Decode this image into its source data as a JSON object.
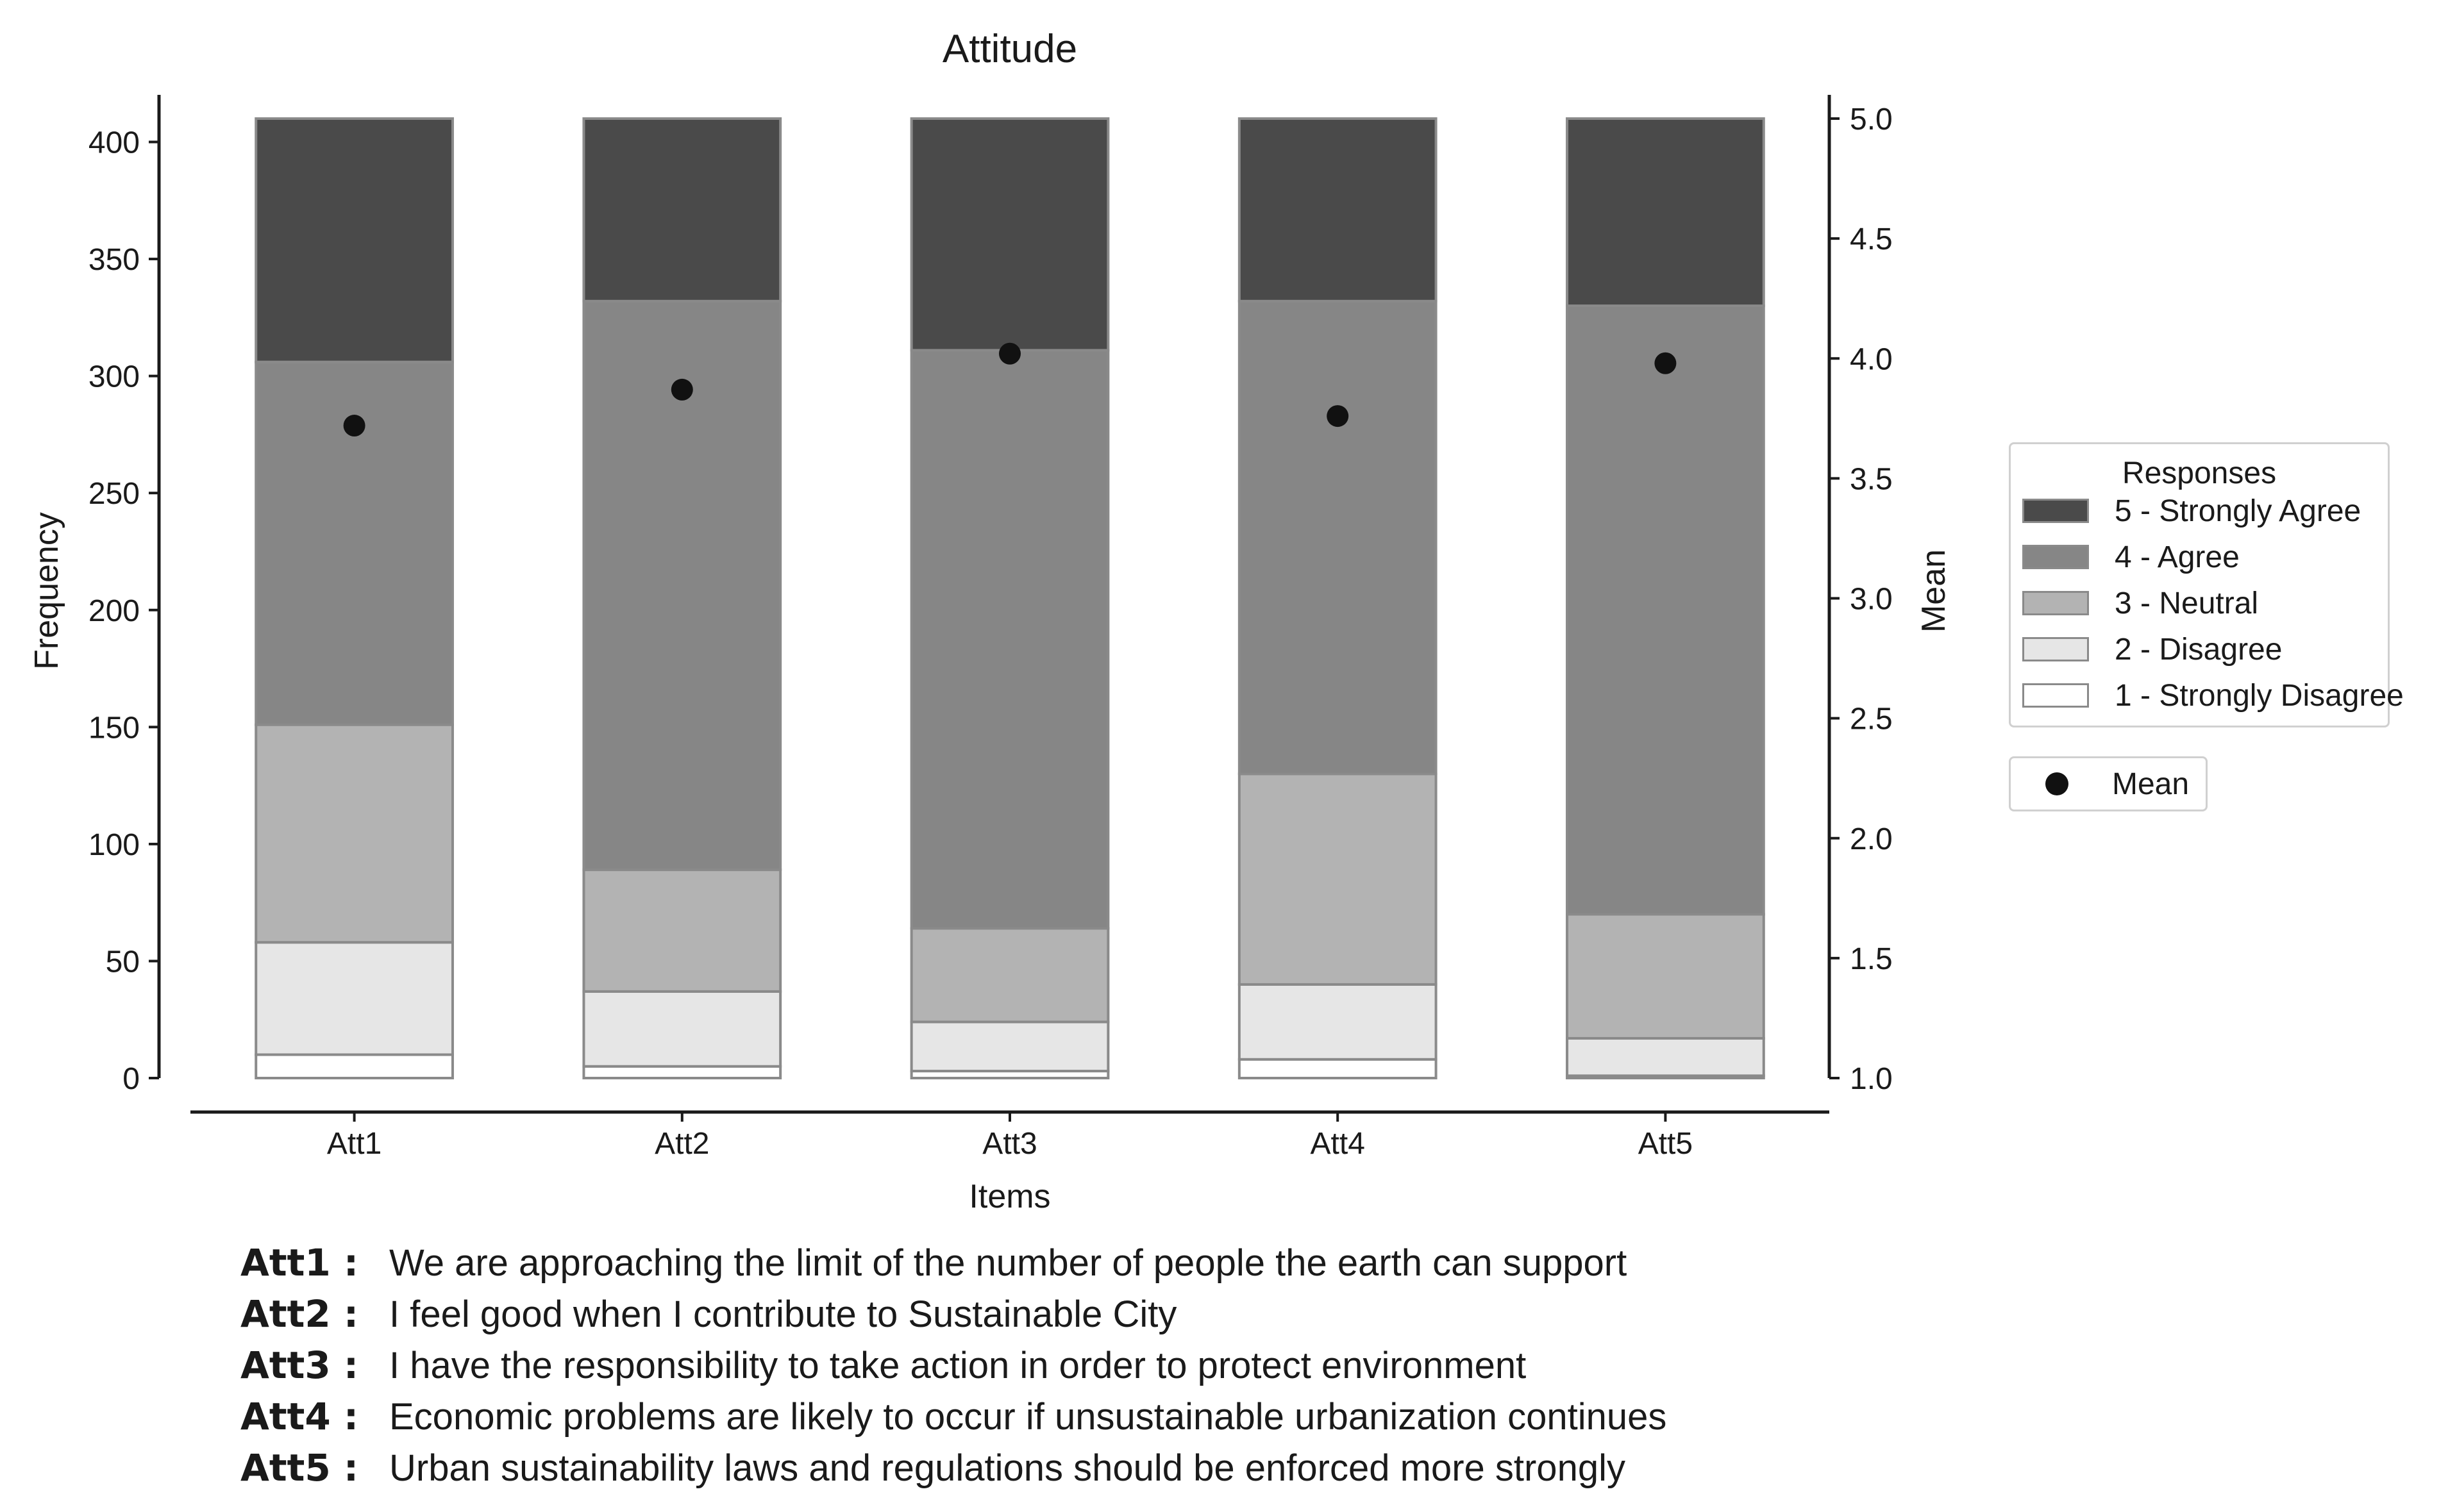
{
  "chart_data": {
    "type": "bar",
    "stacked": true,
    "title": "Attitude",
    "xlabel": "Items",
    "ylabel": "Frequency",
    "y2label": "Mean",
    "ylim": [
      0,
      410
    ],
    "y2lim": [
      1.0,
      5.0
    ],
    "yticks": [
      "0",
      "50",
      "100",
      "150",
      "200",
      "250",
      "300",
      "350",
      "400"
    ],
    "y2ticks": [
      "1.0",
      "1.5",
      "2.0",
      "2.5",
      "3.0",
      "3.5",
      "4.0",
      "4.5",
      "5.0"
    ],
    "categories": [
      "Att1",
      "Att2",
      "Att3",
      "Att4",
      "Att5"
    ],
    "series": [
      {
        "name": "1 - Strongly Disagree",
        "color": "#ffffff",
        "values": [
          10,
          5,
          3,
          8,
          1
        ]
      },
      {
        "name": "2 - Disagree",
        "color": "#e6e6e6",
        "values": [
          48,
          32,
          21,
          32,
          16
        ]
      },
      {
        "name": "3 - Neutral",
        "color": "#b3b3b3",
        "values": [
          93,
          52,
          40,
          90,
          53
        ]
      },
      {
        "name": "4 - Agree",
        "color": "#868686",
        "values": [
          155,
          243,
          247,
          202,
          260
        ]
      },
      {
        "name": "5 - Strongly Agree",
        "color": "#4a4a4a",
        "values": [
          104,
          78,
          99,
          78,
          80
        ]
      }
    ],
    "mean": {
      "name": "Mean",
      "color": "#111111",
      "values": [
        3.72,
        3.87,
        4.02,
        3.76,
        3.98
      ]
    },
    "legend": {
      "title": "Responses",
      "placement": "right"
    }
  },
  "legend": {
    "title": "Responses",
    "items": [
      {
        "label": "5 - Strongly Agree",
        "color": "#4a4a4a"
      },
      {
        "label": "4 - Agree",
        "color": "#868686"
      },
      {
        "label": "3 - Neutral",
        "color": "#b3b3b3"
      },
      {
        "label": "2 - Disagree",
        "color": "#e6e6e6"
      },
      {
        "label": "1 - Strongly Disagree",
        "color": "#ffffff"
      }
    ],
    "mean_label": "Mean"
  },
  "items": [
    {
      "code": "Att1 :",
      "text": "We are approaching the limit of the number of people the earth can support"
    },
    {
      "code": "Att2 :",
      "text": "I feel good when I contribute to Sustainable City"
    },
    {
      "code": "Att3 :",
      "text": "I have the responsibility to take action in order to protect environment"
    },
    {
      "code": "Att4 :",
      "text": "Economic problems are likely to occur if unsustainable urbanization continues"
    },
    {
      "code": "Att5 :",
      "text": "Urban sustainability laws and regulations should be enforced more strongly"
    }
  ]
}
